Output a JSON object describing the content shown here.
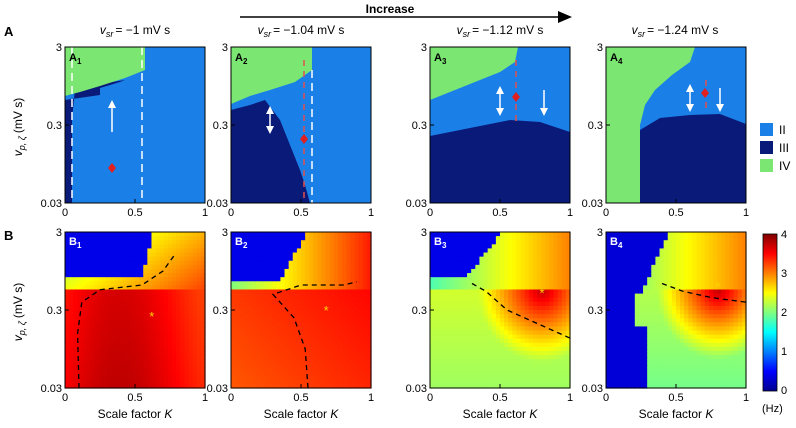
{
  "figure": {
    "row_labels": [
      "A",
      "B"
    ],
    "arrow_label": "Increase",
    "panel_titles": [
      "v_sr = −1 mV s",
      "v_sr = −1.04 mV s",
      "v_sr = −1.12 mV s",
      "v_sr = −1.24 mV s"
    ],
    "title_prefix": "v",
    "title_sub": "sr",
    "title_values": [
      "= −1 mV s",
      "= −1.04 mV s",
      "= −1.12 mV s",
      "= −1.24 mV s"
    ],
    "panel_ids_a": [
      [
        "A",
        "1"
      ],
      [
        "A",
        "2"
      ],
      [
        "A",
        "3"
      ],
      [
        "A",
        "4"
      ]
    ],
    "panel_ids_b": [
      [
        "B",
        "1"
      ],
      [
        "B",
        "2"
      ],
      [
        "B",
        "3"
      ],
      [
        "B",
        "4"
      ]
    ],
    "ylabel_main": "v",
    "ylabel_sub": "p, ζ",
    "ylabel_unit": "(mV s)",
    "xlabel_main": "Scale factor ",
    "xlabel_var": "K",
    "x_ticks": [
      "0",
      "0.5",
      "1"
    ],
    "y_ticks": [
      "3",
      "0.3",
      "0.03"
    ],
    "legend": [
      {
        "label": "II",
        "color": "#1a7fe6"
      },
      {
        "label": "III",
        "color": "#0a1a78"
      },
      {
        "label": "IV",
        "color": "#7ce673"
      }
    ],
    "colorbar": {
      "ticks": [
        "4",
        "3",
        "2",
        "1",
        "0"
      ],
      "unit": "(Hz)",
      "min": 0,
      "max": 4
    }
  },
  "chart_data": [
    {
      "type": "heatmap",
      "panel": "A1",
      "title": "v_sr = −1 mV s",
      "xlabel": "",
      "ylabel": "v_p,ζ (mV s)",
      "xlim": [
        0,
        1
      ],
      "ylim": [
        0.03,
        3
      ],
      "y_scale": "log",
      "regions": [
        "II",
        "III",
        "IV"
      ],
      "boundary_III_II_x": 0.05,
      "boundary_IV_top": [
        [
          0,
          0.4
        ],
        [
          0.2,
          0.5
        ],
        [
          0.4,
          0.9
        ],
        [
          0.55,
          2.0
        ]
      ],
      "dashed_lines_x": [
        0.05,
        0.55
      ],
      "marker": {
        "x": 0.33,
        "y": 0.1
      },
      "arrow": {
        "x": 0.33,
        "y_from": 0.25,
        "y_to": 0.5
      }
    },
    {
      "type": "heatmap",
      "panel": "A2",
      "title": "v_sr = −1.04 mV s",
      "xlabel": "",
      "ylabel": "",
      "xlim": [
        0,
        1
      ],
      "ylim": [
        0.03,
        3
      ],
      "y_scale": "log",
      "regions": [
        "II",
        "III",
        "IV"
      ],
      "boundary_III_II": [
        [
          0,
          0.4
        ],
        [
          0.2,
          0.3
        ],
        [
          0.35,
          0.15
        ],
        [
          0.5,
          0.05
        ],
        [
          0.55,
          0.03
        ]
      ],
      "dashed_lines_x": [
        0.52,
        0.58
      ],
      "marker": {
        "x": 0.52,
        "y": 0.22
      },
      "arrow": {
        "x": 0.38,
        "y_from": 0.2,
        "y_to": 0.5
      }
    },
    {
      "type": "heatmap",
      "panel": "A3",
      "title": "v_sr = −1.12 mV s",
      "xlabel": "",
      "ylabel": "",
      "xlim": [
        0,
        1
      ],
      "ylim": [
        0.03,
        3
      ],
      "y_scale": "log",
      "regions": [
        "II",
        "III",
        "IV"
      ],
      "boundary_III_II": [
        [
          0,
          0.22
        ],
        [
          0.3,
          0.3
        ],
        [
          0.6,
          0.3
        ],
        [
          1,
          0.15
        ]
      ],
      "boundary_IV_top": [
        [
          0,
          0.45
        ],
        [
          0.3,
          0.9
        ],
        [
          0.55,
          1.5
        ],
        [
          0.62,
          3
        ]
      ],
      "dashed_lines_x": [
        0.6
      ],
      "marker": {
        "x": 0.6,
        "y": 0.7
      },
      "arrow": {
        "x": 0.5,
        "y_from": 0.35,
        "y_to": 0.9
      }
    },
    {
      "type": "heatmap",
      "panel": "A4",
      "title": "v_sr = −1.24 mV s",
      "xlabel": "",
      "ylabel": "",
      "xlim": [
        0,
        1
      ],
      "ylim": [
        0.03,
        3
      ],
      "y_scale": "log",
      "regions": [
        "II",
        "III",
        "IV"
      ],
      "boundary_III_II": [
        [
          0.25,
          0.3
        ],
        [
          0.5,
          0.35
        ],
        [
          0.8,
          0.3
        ],
        [
          1,
          0.2
        ]
      ],
      "boundary_IV_top": [
        [
          0,
          0.4
        ],
        [
          0.25,
          0.4
        ],
        [
          0.45,
          0.8
        ],
        [
          0.65,
          2
        ]
      ],
      "dashed_lines_x": [
        0.65
      ],
      "marker": {
        "x": 0.65,
        "y": 0.8
      },
      "arrow": {
        "x": 0.55,
        "y_from": 0.4,
        "y_to": 0.9
      }
    },
    {
      "type": "heatmap",
      "panel": "B1",
      "xlabel": "Scale factor K",
      "ylabel": "v_p,ζ (mV s)",
      "xlim": [
        0,
        1
      ],
      "ylim": [
        0.03,
        3
      ],
      "y_scale": "log",
      "value_range_hz": [
        0,
        4
      ],
      "max_marker": {
        "x": 0.62,
        "y": 0.25
      }
    },
    {
      "type": "heatmap",
      "panel": "B2",
      "xlabel": "Scale factor K",
      "ylabel": "",
      "xlim": [
        0,
        1
      ],
      "ylim": [
        0.03,
        3
      ],
      "y_scale": "log",
      "value_range_hz": [
        0,
        4
      ],
      "max_marker": {
        "x": 0.68,
        "y": 0.3
      }
    },
    {
      "type": "heatmap",
      "panel": "B3",
      "xlabel": "Scale factor K",
      "ylabel": "",
      "xlim": [
        0,
        1
      ],
      "ylim": [
        0.03,
        3
      ],
      "y_scale": "log",
      "value_range_hz": [
        0,
        4
      ],
      "max_marker": {
        "x": 0.8,
        "y": 0.5
      }
    },
    {
      "type": "heatmap",
      "panel": "B4",
      "xlabel": "Scale factor K",
      "ylabel": "",
      "xlim": [
        0,
        1
      ],
      "ylim": [
        0.03,
        3
      ],
      "y_scale": "log",
      "value_range_hz": [
        0,
        4
      ],
      "max_marker": {
        "x": 0.8,
        "y": 0.6
      }
    }
  ]
}
